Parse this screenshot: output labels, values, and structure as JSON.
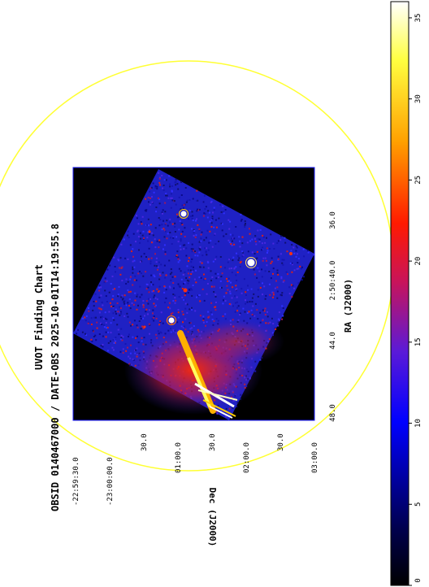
{
  "title": "UVOT Finding Chart",
  "subtitle": "OBSID 0140467000 / DATE-OBS 2025-10-01T14:19:55.8",
  "ra_axis": {
    "label": "RA (J2000)",
    "ticks": [
      "48.0",
      "44.0",
      "2:50:40.0",
      "36.0"
    ]
  },
  "dec_axis": {
    "label": "Dec (J2000)",
    "ticks": [
      "-22:59:30.0",
      "-23:00:00.0",
      "30.0",
      "01:00.0",
      "30.0",
      "02:00.0",
      "30.0",
      "03:00.0"
    ]
  },
  "colorbar": {
    "ticks": [
      "0",
      "5",
      "10",
      "15",
      "20",
      "25",
      "30",
      "35"
    ],
    "min": 0,
    "max": 36
  },
  "colors": {
    "circle": "#ffff33",
    "frame": "#1a1aff"
  }
}
